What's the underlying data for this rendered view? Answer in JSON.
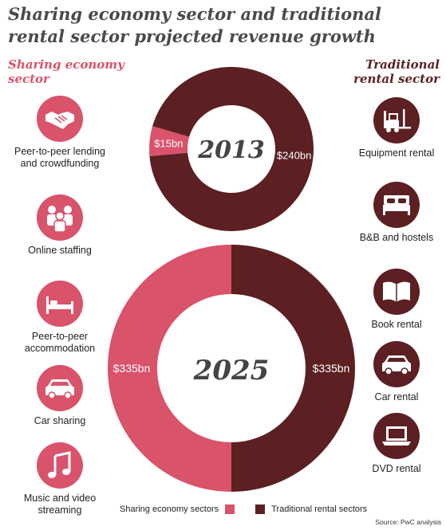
{
  "title": "Sharing economy sector and traditional rental sector projected revenue growth",
  "headers": {
    "left": "Sharing economy sector",
    "right": "Traditional rental sector"
  },
  "left_categories": [
    {
      "label": "Peer-to-peer lending and crowdfunding",
      "icon": "handshake-icon"
    },
    {
      "label": "Online staffing",
      "icon": "people-icon"
    },
    {
      "label": "Peer-to-peer accommodation",
      "icon": "bed-icon"
    },
    {
      "label": "Car sharing",
      "icon": "car-icon"
    },
    {
      "label": "Music and video streaming",
      "icon": "music-note-icon"
    }
  ],
  "right_categories": [
    {
      "label": "Equipment rental",
      "icon": "forklift-icon"
    },
    {
      "label": "B&B and hostels",
      "icon": "bed-icon"
    },
    {
      "label": "Book rental",
      "icon": "book-icon"
    },
    {
      "label": "Car rental",
      "icon": "car-icon"
    },
    {
      "label": "DVD rental",
      "icon": "laptop-icon"
    }
  ],
  "colors": {
    "sharing": "#d9536b",
    "traditional": "#5c1f22"
  },
  "chart_data": [
    {
      "type": "pie",
      "center_label": "2013",
      "series": [
        {
          "name": "Sharing economy sectors",
          "value": 15,
          "label": "$15bn"
        },
        {
          "name": "Traditional rental sectors",
          "value": 240,
          "label": "$240bn"
        }
      ]
    },
    {
      "type": "pie",
      "center_label": "2025",
      "series": [
        {
          "name": "Sharing economy sectors",
          "value": 335,
          "label": "$335bn"
        },
        {
          "name": "Traditional rental sectors",
          "value": 335,
          "label": "$335bn"
        }
      ]
    }
  ],
  "legend": {
    "sharing": "Sharing economy sectors",
    "traditional": "Traditional rental sectors"
  },
  "source": "Source: PwC analysis"
}
